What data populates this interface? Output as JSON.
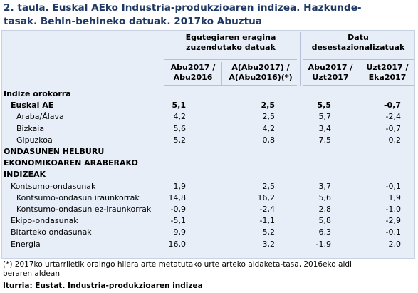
{
  "title": {
    "line1": "2. taula. Euskal AEko Industria-produkzioaren indizea. Hazkunde-",
    "line2": "tasak. Behin-behineko datuak. 2017ko Abuztua"
  },
  "header": {
    "group1_line1": "Egutegiaren eragina",
    "group1_line2": "zuzendutako datuak",
    "group2_line1": "Datu",
    "group2_line2": "desestazionalizatuak",
    "col1_line1": "Abu2017 /",
    "col1_line2": "Abu2016",
    "col2_line1": "A(Abu2017) /",
    "col2_line2": "A(Abu2016)(*)",
    "col3_line1": "Abu2017 /",
    "col3_line2": "Uzt2017",
    "col4_line1": "Uzt2017 /",
    "col4_line2": "Eka2017"
  },
  "rows": [
    {
      "label": "Indize orokorra",
      "bold": true,
      "indent": 0,
      "v": [
        "",
        "",
        "",
        ""
      ]
    },
    {
      "label": "Euskal AE",
      "bold": true,
      "indent": 1,
      "v": [
        "5,1",
        "2,5",
        "5,5",
        "-0,7"
      ]
    },
    {
      "label": "Araba/Álava",
      "bold": false,
      "indent": 2,
      "v": [
        "4,2",
        "2,5",
        "5,7",
        "-2,4"
      ]
    },
    {
      "label": "Bizkaia",
      "bold": false,
      "indent": 2,
      "v": [
        "5,6",
        "4,2",
        "3,4",
        "-0,7"
      ]
    },
    {
      "label": "Gipuzkoa",
      "bold": false,
      "indent": 2,
      "v": [
        "5,2",
        "0,8",
        "7,5",
        "0,2"
      ]
    },
    {
      "label": "ONDASUNEN HELBURU",
      "bold": true,
      "indent": 0,
      "v": [
        "",
        "",
        "",
        ""
      ]
    },
    {
      "label": "EKONOMIKOAREN ARABERAKO",
      "bold": true,
      "indent": 0,
      "v": [
        "",
        "",
        "",
        ""
      ]
    },
    {
      "label": "INDIZEAK",
      "bold": true,
      "indent": 0,
      "v": [
        "",
        "",
        "",
        ""
      ]
    },
    {
      "label": "Kontsumo-ondasunak",
      "bold": false,
      "indent": 1,
      "v": [
        "1,9",
        "2,5",
        "3,7",
        "-0,1"
      ]
    },
    {
      "label": "Kontsumo-ondasun iraunkorrak",
      "bold": false,
      "indent": 2,
      "v": [
        "14,8",
        "16,2",
        "5,6",
        "1,9"
      ]
    },
    {
      "label": "Kontsumo-ondasun ez-iraunkorrak",
      "bold": false,
      "indent": 2,
      "v": [
        "-0,9",
        "-2,4",
        "2,8",
        "-1,0"
      ]
    },
    {
      "label": "Ekipo-ondasunak",
      "bold": false,
      "indent": 1,
      "v": [
        "-5,1",
        "-1,1",
        "5,8",
        "-2,9"
      ]
    },
    {
      "label": "Bitarteko ondasunak",
      "bold": false,
      "indent": 1,
      "v": [
        "9,9",
        "5,2",
        "6,3",
        "-0,1"
      ]
    },
    {
      "label": "Energia",
      "bold": false,
      "indent": 1,
      "v": [
        "16,0",
        "3,2",
        "-1,9",
        "2,0"
      ]
    }
  ],
  "footnote": {
    "line1": "(*) 2017ko urtarriletik oraingo hilera arte metatutako urte arteko aldaketa-tasa, 2016eko aldi",
    "line2": "beraren aldean"
  },
  "source": "Iturria: Eustat. Industria-produkzioaren indizea"
}
